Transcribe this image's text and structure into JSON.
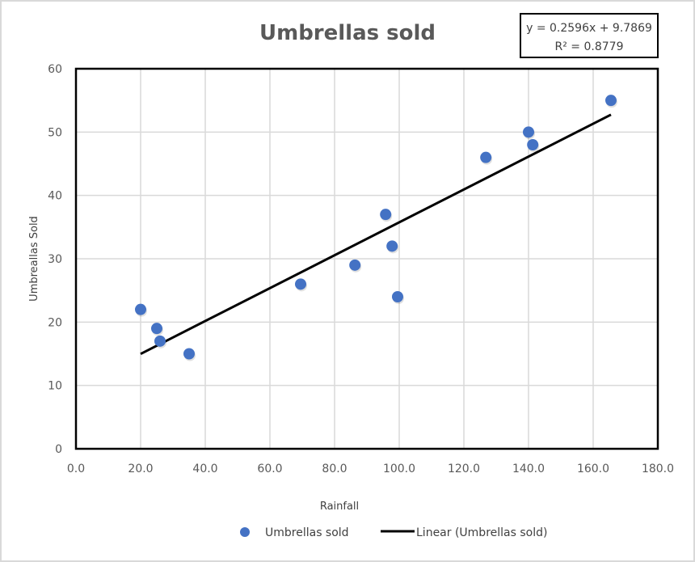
{
  "chart_data": {
    "type": "scatter",
    "title": "Umbrellas sold",
    "xlabel": "Rainfall",
    "ylabel": "Umbreallas Sold",
    "xlim": [
      0,
      180
    ],
    "ylim": [
      0,
      60
    ],
    "x_ticks": [
      "0.0",
      "20.0",
      "40.0",
      "60.0",
      "80.0",
      "100.0",
      "120.0",
      "140.0",
      "160.0",
      "180.0"
    ],
    "y_ticks": [
      "0",
      "10",
      "20",
      "30",
      "40",
      "50",
      "60"
    ],
    "grid": true,
    "legend_position": "bottom",
    "series": [
      {
        "name": "Umbrellas sold",
        "type": "scatter",
        "color": "#4472c4",
        "x": [
          20.0,
          25.0,
          26.0,
          35.0,
          69.5,
          86.3,
          95.8,
          97.8,
          99.5,
          126.8,
          140.0,
          141.3,
          165.5
        ],
        "y": [
          22,
          19,
          17,
          15,
          26,
          29,
          37,
          32,
          24,
          46,
          50,
          48,
          55
        ]
      },
      {
        "name": "Linear (Umbrellas sold)",
        "type": "line",
        "color": "#000000",
        "slope": 0.2596,
        "intercept": 9.7869,
        "x": [
          20.0,
          165.5
        ],
        "y": [
          14.98,
          52.75
        ]
      }
    ],
    "annotations": {
      "equation": "y = 0.2596x + 9.7869",
      "r_squared": "R² = 0.8779"
    }
  },
  "legend": {
    "items": [
      {
        "label": "Umbrellas sold",
        "marker": "circle",
        "color": "#4472c4"
      },
      {
        "label": "Linear (Umbrellas sold)",
        "marker": "line",
        "color": "#000000"
      }
    ]
  },
  "colors": {
    "marker": "#4472c4",
    "trendline": "#000000",
    "grid": "#d9d9d9",
    "text": "#595959"
  }
}
